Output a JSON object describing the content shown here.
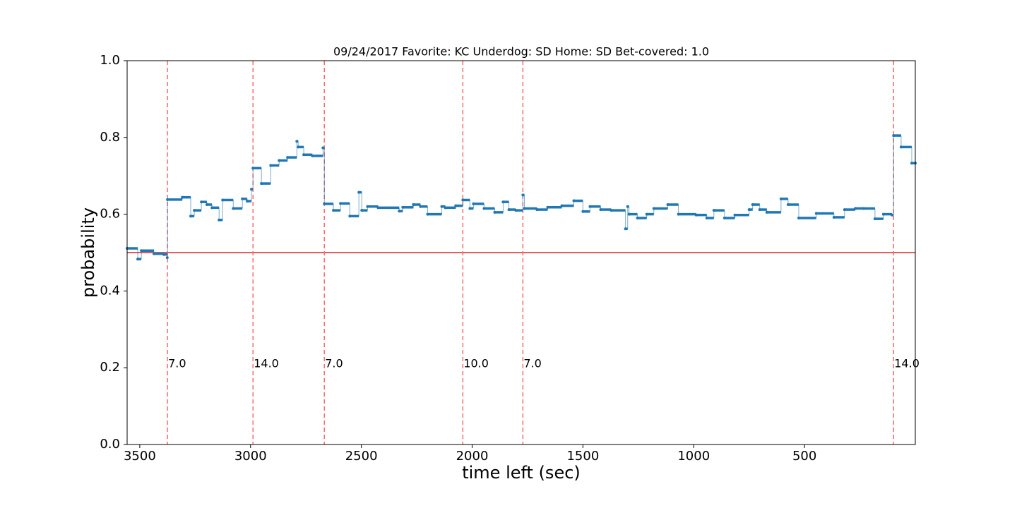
{
  "chart_data": {
    "type": "step",
    "title": "09/24/2017 Favorite: KC Underdog: SD Home: SD Bet-covered: 1.0",
    "xlabel": "time left (sec)",
    "ylabel": "probability",
    "xlim": [
      3557,
      0
    ],
    "ylim": [
      0,
      1
    ],
    "xticks": [
      3500,
      3000,
      2500,
      2000,
      1500,
      1000,
      500
    ],
    "yticks": [
      {
        "value": 0,
        "label": "0.0"
      },
      {
        "value": 0.2,
        "label": "0.2"
      },
      {
        "value": 0.4,
        "label": "0.4"
      },
      {
        "value": 0.6,
        "label": "0.6"
      },
      {
        "value": 0.8,
        "label": "0.8"
      },
      {
        "value": 1,
        "label": "1.0"
      }
    ],
    "color": "#1f77b4",
    "threshold": 0.5,
    "threshold_color": "#d62728",
    "event_color": "#ff6b6b",
    "events": [
      {
        "x": 3375,
        "label": "7.0"
      },
      {
        "x": 2989,
        "label": "14.0"
      },
      {
        "x": 2667,
        "label": "7.0"
      },
      {
        "x": 2042,
        "label": "10.0"
      },
      {
        "x": 1771,
        "label": "7.0"
      },
      {
        "x": 98,
        "label": "14.0"
      }
    ],
    "x": [
      3557,
      3509,
      3493,
      3436,
      3391,
      3376,
      3375,
      3308,
      3270,
      3254,
      3222,
      3197,
      3174,
      3142,
      3126,
      3078,
      3037,
      3015,
      2996,
      2989,
      2951,
      2909,
      2871,
      2833,
      2791,
      2785,
      2760,
      2721,
      2673,
      2667,
      2626,
      2594,
      2552,
      2511,
      2498,
      2472,
      2424,
      2329,
      2313,
      2265,
      2233,
      2201,
      2137,
      2121,
      2074,
      2042,
      2010,
      1994,
      1946,
      1898,
      1860,
      1834,
      1803,
      1771,
      1764,
      1707,
      1659,
      1595,
      1541,
      1500,
      1468,
      1420,
      1372,
      1308,
      1298,
      1292,
      1254,
      1212,
      1180,
      1117,
      1069,
      989,
      941,
      909,
      861,
      814,
      750,
      734,
      702,
      670,
      606,
      574,
      526,
      447,
      367,
      319,
      271,
      233,
      182,
      144,
      105,
      98,
      64,
      16,
      0
    ],
    "values": [
      0.511,
      0.483,
      0.505,
      0.497,
      0.495,
      0.487,
      0.638,
      0.644,
      0.595,
      0.61,
      0.632,
      0.625,
      0.617,
      0.585,
      0.637,
      0.615,
      0.64,
      0.634,
      0.665,
      0.72,
      0.68,
      0.727,
      0.74,
      0.748,
      0.79,
      0.775,
      0.755,
      0.752,
      0.773,
      0.627,
      0.61,
      0.628,
      0.595,
      0.657,
      0.61,
      0.62,
      0.617,
      0.608,
      0.618,
      0.625,
      0.62,
      0.6,
      0.62,
      0.617,
      0.622,
      0.637,
      0.615,
      0.627,
      0.615,
      0.605,
      0.632,
      0.612,
      0.61,
      0.65,
      0.615,
      0.612,
      0.618,
      0.622,
      0.635,
      0.607,
      0.62,
      0.612,
      0.61,
      0.562,
      0.62,
      0.6,
      0.59,
      0.6,
      0.615,
      0.625,
      0.6,
      0.598,
      0.59,
      0.61,
      0.59,
      0.598,
      0.612,
      0.625,
      0.612,
      0.605,
      0.64,
      0.625,
      0.59,
      0.602,
      0.592,
      0.612,
      0.615,
      0.615,
      0.588,
      0.6,
      0.598,
      0.805,
      0.775,
      0.733,
      0.733
    ]
  }
}
